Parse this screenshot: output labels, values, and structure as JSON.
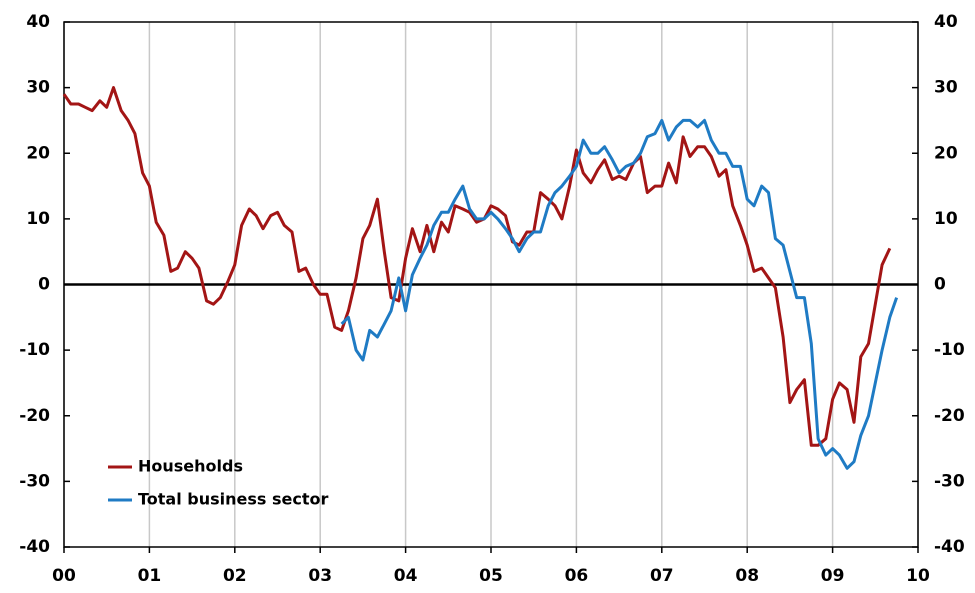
{
  "chart_data": {
    "type": "line",
    "x": [
      0,
      0.08,
      0.17,
      0.25,
      0.33,
      0.42,
      0.5,
      0.58,
      0.67,
      0.75,
      0.83,
      0.92,
      1,
      1.08,
      1.17,
      1.25,
      1.33,
      1.42,
      1.5,
      1.58,
      1.67,
      1.75,
      1.83,
      1.92,
      2,
      2.08,
      2.17,
      2.25,
      2.33,
      2.42,
      2.5,
      2.58,
      2.67,
      2.75,
      2.83,
      2.92,
      3,
      3.08,
      3.17,
      3.25,
      3.33,
      3.42,
      3.5,
      3.58,
      3.67,
      3.75,
      3.83,
      3.92,
      4,
      4.08,
      4.17,
      4.25,
      4.33,
      4.42,
      4.5,
      4.58,
      4.67,
      4.75,
      4.83,
      4.92,
      5,
      5.08,
      5.17,
      5.25,
      5.33,
      5.42,
      5.5,
      5.58,
      5.67,
      5.75,
      5.83,
      5.92,
      6,
      6.08,
      6.17,
      6.25,
      6.33,
      6.42,
      6.5,
      6.58,
      6.67,
      6.75,
      6.83,
      6.92,
      7,
      7.08,
      7.17,
      7.25,
      7.33,
      7.42,
      7.5,
      7.58,
      7.67,
      7.75,
      7.83,
      7.92,
      8,
      8.08,
      8.17,
      8.25,
      8.33,
      8.42,
      8.5,
      8.58,
      8.67,
      8.75,
      8.83,
      8.92,
      9,
      9.08,
      9.17,
      9.25,
      9.33,
      9.42,
      9.5,
      9.58,
      9.67,
      9.75
    ],
    "series": [
      {
        "name": "Households",
        "color": "#a31515",
        "values": [
          29,
          27.5,
          27.5,
          27,
          26.5,
          28,
          27,
          30,
          26.5,
          25,
          23,
          17,
          15,
          9.5,
          7.5,
          2,
          2.5,
          5,
          4,
          2.5,
          -2.5,
          -3,
          -2,
          0.5,
          3,
          9,
          11.5,
          10.5,
          8.5,
          10.5,
          11,
          9,
          8,
          2,
          2.5,
          0,
          -1.5,
          -1.5,
          -6.5,
          -7,
          -4,
          1,
          7,
          9,
          13,
          5,
          -2,
          -2.5,
          4,
          8.5,
          5,
          9,
          5,
          9.5,
          8,
          12,
          11.5,
          11,
          9.5,
          10,
          12,
          11.5,
          10.5,
          6.5,
          6,
          8,
          8,
          14,
          13,
          12,
          10,
          15,
          20.5,
          17,
          15.5,
          17.5,
          19,
          16,
          16.5,
          16,
          18.5,
          19.5,
          14,
          15,
          15,
          18.5,
          15.5,
          22.5,
          19.5,
          21,
          21,
          19.5,
          16.5,
          17.5,
          12,
          9,
          6,
          2,
          2.5,
          1,
          -0.5,
          -8,
          -18,
          -16,
          -14.5,
          -24.5,
          -24.5,
          -23.5,
          -17.5,
          -15,
          -16,
          -21,
          -11,
          -9,
          -3,
          3,
          5.5,
          null
        ]
      },
      {
        "name": "Total business sector",
        "color": "#1f7bc4",
        "values": [
          null,
          null,
          null,
          null,
          null,
          null,
          null,
          null,
          null,
          null,
          null,
          null,
          null,
          null,
          null,
          null,
          null,
          null,
          null,
          null,
          null,
          null,
          null,
          null,
          null,
          null,
          null,
          null,
          null,
          null,
          null,
          null,
          null,
          null,
          null,
          null,
          null,
          null,
          null,
          -6,
          -5,
          -10,
          -11.5,
          -7,
          -8,
          -6,
          -4,
          1,
          -4,
          1.5,
          4,
          6,
          9,
          11,
          11,
          13,
          15,
          11.5,
          10,
          10,
          11,
          10,
          8.5,
          7,
          5,
          7,
          8,
          8,
          12,
          14,
          15,
          16.5,
          18,
          22,
          20,
          20,
          21,
          19,
          17,
          18,
          18.5,
          20,
          22.5,
          23,
          25,
          22,
          24,
          25,
          25,
          24,
          25,
          22,
          20,
          20,
          18,
          18,
          13,
          12,
          15,
          14,
          7,
          6,
          2,
          -2,
          -2,
          -9,
          -23.5,
          -26,
          -25,
          -26,
          -28,
          -27,
          -23,
          -20,
          -15,
          -10,
          -5,
          -2
        ]
      }
    ],
    "xlim": [
      0,
      10
    ],
    "xticks": [
      {
        "value": 0,
        "label": "00"
      },
      {
        "value": 1,
        "label": "01"
      },
      {
        "value": 2,
        "label": "02"
      },
      {
        "value": 3,
        "label": "03"
      },
      {
        "value": 4,
        "label": "04"
      },
      {
        "value": 5,
        "label": "05"
      },
      {
        "value": 6,
        "label": "06"
      },
      {
        "value": 7,
        "label": "07"
      },
      {
        "value": 8,
        "label": "08"
      },
      {
        "value": 9,
        "label": "09"
      },
      10
    ],
    "ylim": [
      -40,
      40
    ],
    "yticks": [
      -40,
      -30,
      -20,
      -10,
      0,
      10,
      20,
      30,
      40
    ],
    "y2lim": [
      -40,
      40
    ],
    "y2ticks": [
      -40,
      -30,
      -20,
      -10,
      0,
      10,
      20,
      30,
      40
    ],
    "grid": true,
    "legend": "lower left"
  }
}
